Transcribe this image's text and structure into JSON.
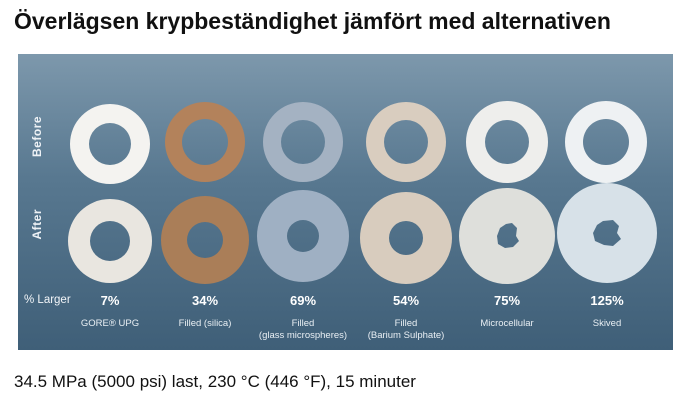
{
  "title": "Överlägsen krypbeständighet jämfört med alternativen",
  "row_labels": {
    "before": "Before",
    "after": "After",
    "larger": "% Larger"
  },
  "samples": [
    {
      "name": "GORE® UPG",
      "pct": "7%",
      "before_color": "#f4f3f0",
      "after_color": "#e9e6e0"
    },
    {
      "name": "Filled (silica)",
      "pct": "34%",
      "before_color": "#b3825b",
      "after_color": "#aa7e58"
    },
    {
      "name": "Filled\n(glass microspheres)",
      "pct": "69%",
      "before_color": "#a4b2c2",
      "after_color": "#9fb0c3"
    },
    {
      "name": "Filled\n(Barium Sulphate)",
      "pct": "54%",
      "before_color": "#d9cdbf",
      "after_color": "#d8ccbe"
    },
    {
      "name": "Microcellular",
      "pct": "75%",
      "before_color": "#eeeeec",
      "after_color": "#dedfdb"
    },
    {
      "name": "Skived",
      "pct": "125%",
      "before_color": "#eef1f3",
      "after_color": "#d7e1e8"
    }
  ],
  "caption": "34.5 MPa (5000 psi) last, 230 °C (446 °F), 15 minuter"
}
